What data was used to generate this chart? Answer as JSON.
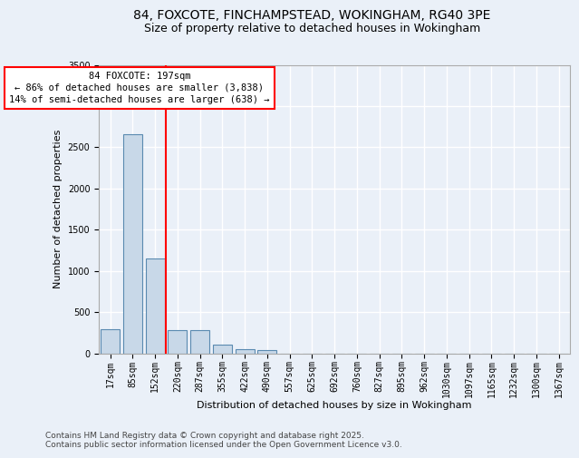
{
  "title_line1": "84, FOXCOTE, FINCHAMPSTEAD, WOKINGHAM, RG40 3PE",
  "title_line2": "Size of property relative to detached houses in Wokingham",
  "xlabel": "Distribution of detached houses by size in Wokingham",
  "ylabel": "Number of detached properties",
  "categories": [
    "17sqm",
    "85sqm",
    "152sqm",
    "220sqm",
    "287sqm",
    "355sqm",
    "422sqm",
    "490sqm",
    "557sqm",
    "625sqm",
    "692sqm",
    "760sqm",
    "827sqm",
    "895sqm",
    "962sqm",
    "1030sqm",
    "1097sqm",
    "1165sqm",
    "1232sqm",
    "1300sqm",
    "1367sqm"
  ],
  "values": [
    290,
    2660,
    1155,
    285,
    280,
    100,
    55,
    38,
    0,
    0,
    0,
    0,
    0,
    0,
    0,
    0,
    0,
    0,
    0,
    0,
    0
  ],
  "bar_color": "#c8d8e8",
  "bar_edge_color": "#5a8ab0",
  "vline_x_index": 2.5,
  "vline_color": "red",
  "annotation_text": "84 FOXCOTE: 197sqm\n← 86% of detached houses are smaller (3,838)\n14% of semi-detached houses are larger (638) →",
  "annotation_box_color": "white",
  "annotation_box_edge_color": "red",
  "ylim": [
    0,
    3500
  ],
  "yticks": [
    0,
    500,
    1000,
    1500,
    2000,
    2500,
    3000,
    3500
  ],
  "bg_color": "#eaf0f8",
  "plot_bg_color": "#eaf0f8",
  "grid_color": "white",
  "footer_line1": "Contains HM Land Registry data © Crown copyright and database right 2025.",
  "footer_line2": "Contains public sector information licensed under the Open Government Licence v3.0.",
  "title_fontsize": 10,
  "subtitle_fontsize": 9,
  "axis_label_fontsize": 8,
  "tick_fontsize": 7,
  "annotation_fontsize": 7.5,
  "footer_fontsize": 6.5
}
